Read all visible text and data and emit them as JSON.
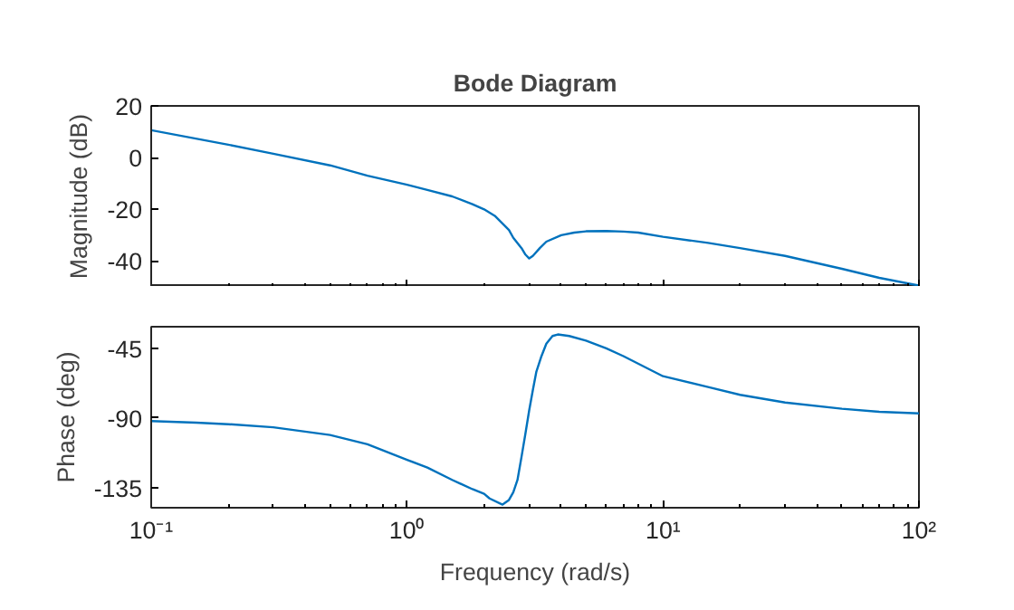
{
  "chart_data": [
    {
      "type": "line",
      "title": "Bode Diagram",
      "ylabel": "Magnitude (dB)",
      "xlim": [
        0.1,
        100
      ],
      "xticks": [
        0.1,
        1,
        10,
        100
      ],
      "ylim": [
        -50,
        20
      ],
      "yticks": [
        -40,
        -20,
        0,
        20
      ],
      "log": "x",
      "grid": false,
      "tick_labels": "y",
      "marker": "none",
      "line_style": "solid",
      "x": [
        0.1,
        0.2,
        0.3,
        0.5,
        0.7,
        1,
        1.2,
        1.5,
        1.8,
        2,
        2.2,
        2.5,
        2.6,
        2.8,
        2.9,
        3,
        3.1,
        3.3,
        3.5,
        4,
        4.5,
        5,
        6,
        7,
        8,
        10,
        15,
        20,
        30,
        50,
        70,
        100
      ],
      "series": [
        {
          "color": "#0072bd",
          "values": [
            10.6,
            5,
            1.5,
            -3,
            -7,
            -10.5,
            -12.5,
            -15,
            -18,
            -20,
            -22.5,
            -28,
            -31,
            -35,
            -37.5,
            -39,
            -38,
            -35,
            -32.5,
            -30,
            -29,
            -28.5,
            -28.4,
            -28.6,
            -29,
            -30.6,
            -33,
            -35,
            -38,
            -43,
            -46.5,
            -49.5
          ]
        }
      ]
    },
    {
      "type": "line",
      "xlabel": "Frequency (rad/s)",
      "ylabel": "Phase (deg)",
      "xlim": [
        0.1,
        100
      ],
      "xticks": [
        {
          "value": 0.1,
          "label": "10⁻¹"
        },
        {
          "value": 1,
          "label": "10⁰"
        },
        {
          "value": 10,
          "label": "10¹"
        },
        {
          "value": 100,
          "label": "10²"
        }
      ],
      "ylim": [
        -148,
        -31
      ],
      "yticks": [
        -135,
        -90,
        -45
      ],
      "log": "x",
      "grid": false,
      "marker": "none",
      "line_style": "solid",
      "x": [
        0.1,
        0.15,
        0.2,
        0.3,
        0.5,
        0.7,
        1,
        1.2,
        1.5,
        1.8,
        2,
        2.1,
        2.36,
        2.5,
        2.6,
        2.7,
        2.8,
        2.9,
        3,
        3.1,
        3.2,
        3.35,
        3.5,
        3.7,
        3.88,
        4.3,
        5,
        6,
        7,
        10,
        15,
        20,
        30,
        50,
        70,
        100
      ],
      "series": [
        {
          "color": "#0072bd",
          "values": [
            -92,
            -93,
            -94,
            -96,
            -101,
            -107,
            -117,
            -122,
            -130,
            -136,
            -139,
            -142,
            -146,
            -143,
            -138,
            -130,
            -115,
            -100,
            -85,
            -72,
            -60,
            -50,
            -42,
            -37,
            -36,
            -37,
            -40,
            -45,
            -50,
            -63,
            -70,
            -75,
            -80,
            -84,
            -86,
            -87
          ]
        }
      ]
    }
  ]
}
